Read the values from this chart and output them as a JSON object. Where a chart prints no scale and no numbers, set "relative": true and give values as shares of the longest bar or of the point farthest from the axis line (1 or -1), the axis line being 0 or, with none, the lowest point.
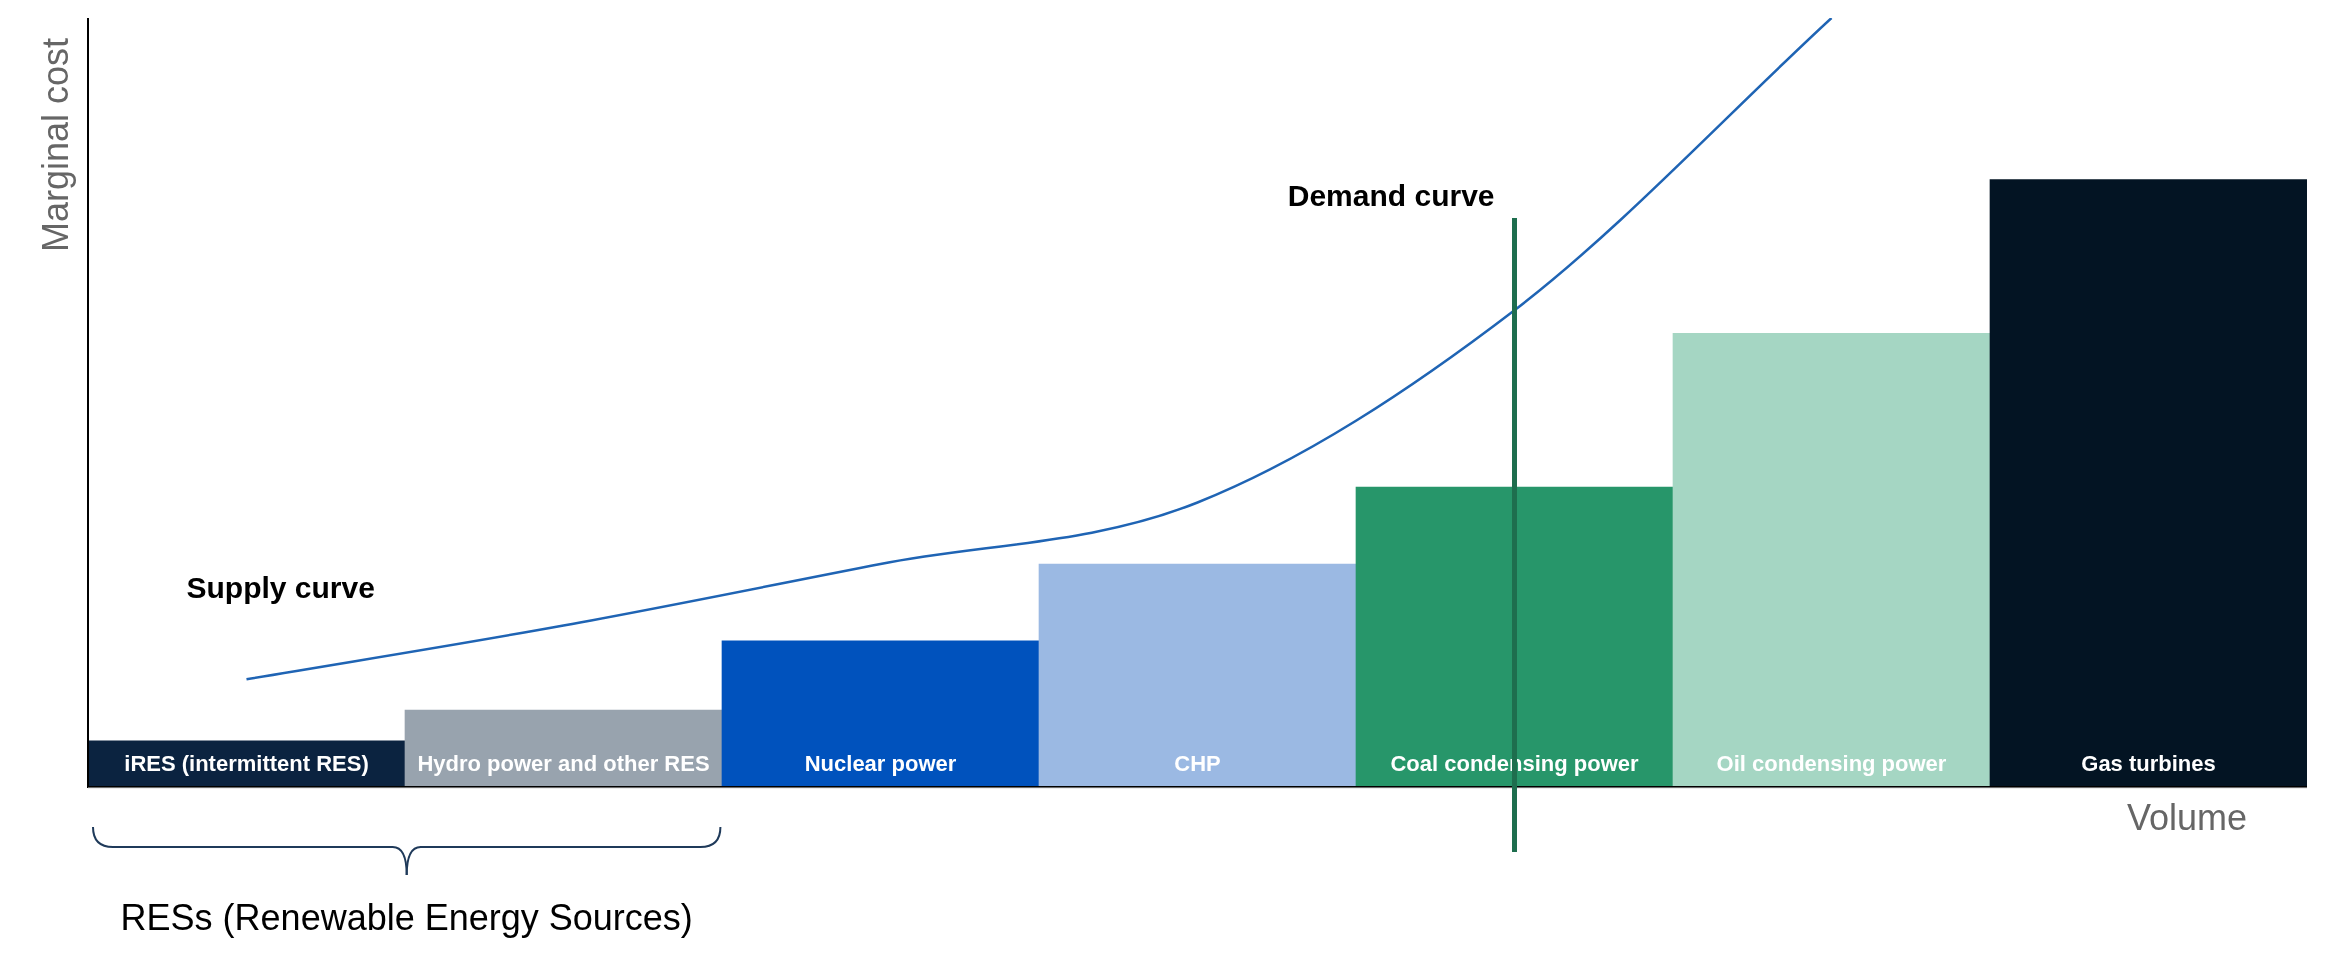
{
  "chart_data": {
    "type": "bar",
    "relative": true,
    "xlabel": "Volume",
    "ylabel": "Marginal cost",
    "legend": false,
    "categories": [
      "iRES (intermittent RES)",
      "Hydro power and other RES",
      "Nuclear power",
      "CHP",
      "Coal condensing power",
      "Oil condensing power",
      "Gas turbines"
    ],
    "series": [
      {
        "colors": [
          "#0b2340",
          "#98a3ae",
          "#0052bd",
          "#9bb9e3",
          "#27966a",
          "#a5d6c3",
          "#031423"
        ],
        "values": [
          0.06,
          0.1,
          0.19,
          0.29,
          0.39,
          0.59,
          0.79
        ]
      },
      {
        "type": "line",
        "name": "Supply curve",
        "color": "#1f64b4",
        "values": [
          0.14,
          0.21,
          0.29,
          0.37,
          0.62,
          1,
          null
        ]
      }
    ],
    "ref_lines": [
      {
        "axis": "x",
        "value": "Coal condensing power",
        "label": "Demand curve",
        "color": "#1e6e4e"
      }
    ],
    "annotations": [
      "RESs (Renewable Energy Sources)"
    ]
  }
}
